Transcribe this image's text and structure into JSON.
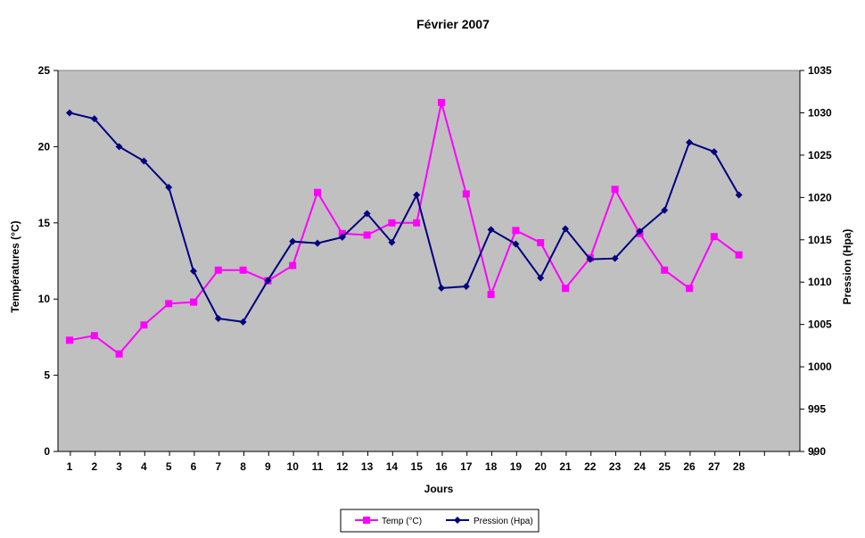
{
  "chart_data": {
    "type": "line",
    "title": "Février 2007",
    "xlabel": "Jours",
    "ylabel_left": "Températures (°C)",
    "ylabel_right": "Pression (Hpa)",
    "x": [
      1,
      2,
      3,
      4,
      5,
      6,
      7,
      8,
      9,
      10,
      11,
      12,
      13,
      14,
      15,
      16,
      17,
      18,
      19,
      20,
      21,
      22,
      23,
      24,
      25,
      26,
      27,
      28
    ],
    "ylim_left": [
      0,
      25
    ],
    "yticks_left": [
      0,
      5,
      10,
      15,
      20,
      25
    ],
    "ylim_right": [
      990,
      1035
    ],
    "yticks_right": [
      990,
      995,
      1000,
      1005,
      1010,
      1015,
      1020,
      1025,
      1030,
      1035
    ],
    "grid": false,
    "legend_position": "bottom-center",
    "series": [
      {
        "name": "Temp (°C)",
        "axis": "left",
        "color": "#ff00ff",
        "marker": "square",
        "values": [
          7.3,
          7.6,
          6.4,
          8.3,
          9.7,
          9.8,
          11.9,
          11.9,
          11.2,
          12.2,
          17.0,
          14.3,
          14.2,
          15.0,
          15.0,
          22.9,
          16.9,
          10.3,
          14.5,
          13.7,
          10.7,
          12.7,
          17.2,
          14.3,
          11.9,
          10.7,
          14.1,
          12.9
        ]
      },
      {
        "name": "Pression (Hpa)",
        "axis": "right",
        "color": "#000080",
        "marker": "diamond",
        "values": [
          1030.0,
          1029.3,
          1026.0,
          1024.3,
          1021.2,
          1011.3,
          1005.7,
          1005.3,
          1010.2,
          1014.8,
          1014.6,
          1015.3,
          1018.1,
          1014.7,
          1020.3,
          1009.3,
          1009.5,
          1016.2,
          1014.5,
          1010.5,
          1016.3,
          1012.7,
          1012.8,
          1016.0,
          1018.5,
          1026.5,
          1025.4,
          1020.3
        ]
      }
    ],
    "plot_bg": "#c0c0c0"
  }
}
